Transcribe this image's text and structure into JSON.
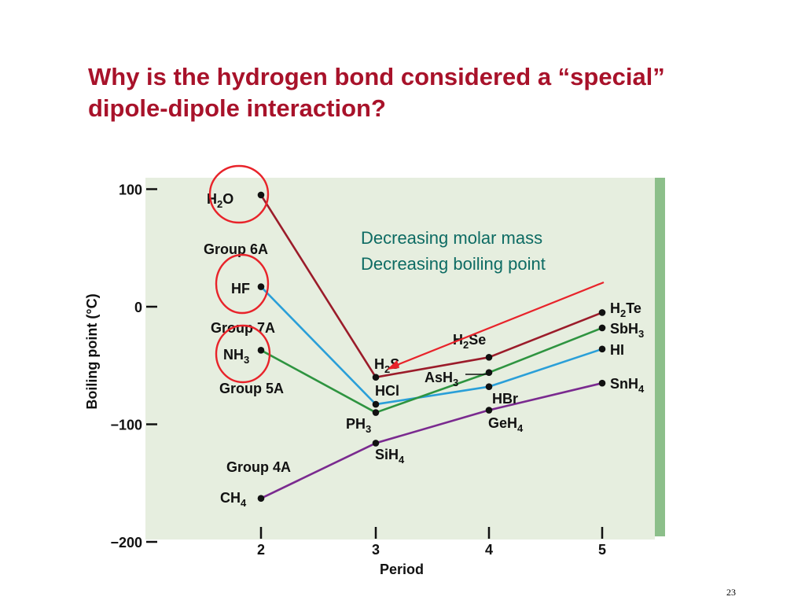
{
  "slide": {
    "title_lines": [
      "Why is the hydrogen bond considered a “special”",
      "dipole-dipole interaction?"
    ],
    "page_number": "23"
  },
  "colors": {
    "title": "#a8122a",
    "plot_background": "#e6eedf",
    "plot_right_band": "#8cbf8a",
    "annotation_text": "#0d6b63",
    "annotation_arrow": "#e8232a",
    "highlight_circle": "#e8232a",
    "group_6a": "#9b1c2a",
    "group_7a": "#2a9fd8",
    "group_5a": "#2e9440",
    "group_4a": "#7a2a8f"
  },
  "chart_data": {
    "type": "line",
    "xlabel": "Period",
    "ylabel": "Boiling point (°C)",
    "x": [
      2,
      3,
      4,
      5
    ],
    "x_ticks": [
      "2",
      "3",
      "4",
      "5"
    ],
    "ylim": [
      -200,
      100
    ],
    "y_ticks": [
      "100",
      "0",
      "−100",
      "−200"
    ],
    "y_tick_values": [
      100,
      0,
      -100,
      -200
    ],
    "series": [
      {
        "name": "Group 6A",
        "color_key": "group_6a",
        "values": [
          95,
          -60,
          -43,
          -5
        ],
        "points": [
          [
            "H",
            "2",
            "O"
          ],
          [
            "H",
            "2",
            "S"
          ],
          [
            "H",
            "2",
            "Se"
          ],
          [
            "H",
            "2",
            "Te"
          ]
        ]
      },
      {
        "name": "Group 7A",
        "color_key": "group_7a",
        "values": [
          17,
          -83,
          -68,
          -36
        ],
        "points": [
          [
            "HF"
          ],
          [
            "HCl"
          ],
          [
            "HBr"
          ],
          [
            "HI"
          ]
        ]
      },
      {
        "name": "Group 5A",
        "color_key": "group_5a",
        "values": [
          -37,
          -90,
          -56,
          -18
        ],
        "points": [
          [
            "NH",
            "3",
            ""
          ],
          [
            "PH",
            "3",
            ""
          ],
          [
            "AsH",
            "3",
            ""
          ],
          [
            "SbH",
            "3",
            ""
          ]
        ]
      },
      {
        "name": "Group 4A",
        "color_key": "group_4a",
        "values": [
          -163,
          -116,
          -88,
          -65
        ],
        "points": [
          [
            "CH",
            "4",
            ""
          ],
          [
            "SiH",
            "4",
            ""
          ],
          [
            "GeH",
            "4",
            ""
          ],
          [
            "SnH",
            "4",
            ""
          ]
        ]
      }
    ],
    "annotations": [
      "Decreasing molar mass",
      "Decreasing boiling point"
    ],
    "highlighted": [
      "H2O",
      "HF",
      "NH3"
    ],
    "grid": false,
    "legend": "none"
  }
}
